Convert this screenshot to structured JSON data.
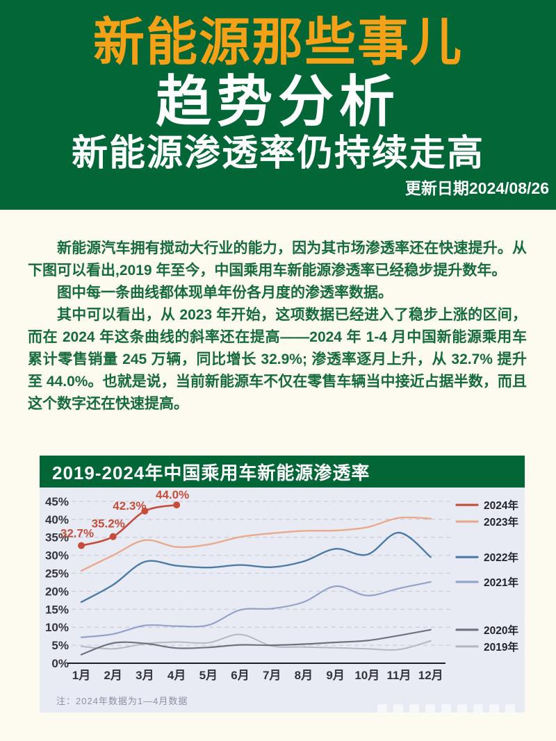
{
  "header": {
    "brand_title": "新能源那些事儿",
    "main_title": "趋势分析",
    "subtitle": "新能源渗透率仍持续走高",
    "update_date": "更新日期2024/08/26"
  },
  "article": {
    "paragraphs": [
      "新能源汽车拥有搅动大行业的能力，因为其市场渗透率还在快速提升。从下图可以看出,2019 年至今，中国乘用车新能源渗透率已经稳步提升数年。",
      "图中每一条曲线都体现单年份各月度的渗透率数据。",
      "其中可以看出，从 2023 年开始，这项数据已经进入了稳步上涨的区间，而在 2024 年这条曲线的斜率还在提高——2024 年 1-4 月中国新能源乘用车累计零售销量 245 万辆，同比增长 32.9%; 渗透率逐月上升，从 32.7% 提升至 44.0%。也就是说，当前新能源车不仅在零售车辆当中接近占据半数，而且这个数字还在快速提高。"
    ]
  },
  "chart": {
    "title": "2019-2024年中国乘用车新能源渗透率",
    "note": "注：2024年数据为1—4月数据"
  },
  "colors": {
    "header_green": "#036636",
    "brand_orange": "#f5a118",
    "body_text_green": "#156b3b",
    "page_cream": "#fdfbf0",
    "chart_bg": "#e9ebf4",
    "grid": "#cbcfd9",
    "axis": "#1c1c22",
    "tick_text": "#33343a",
    "legend_text": "#23242b",
    "note_gray": "#8b91a3"
  },
  "chart_data": {
    "type": "line",
    "title": "2019-2024年中国乘用车新能源渗透率",
    "categories": [
      "1月",
      "2月",
      "3月",
      "4月",
      "5月",
      "6月",
      "7月",
      "8月",
      "9月",
      "10月",
      "11月",
      "12月"
    ],
    "y_ticks": [
      "0%",
      "5%",
      "10%",
      "15%",
      "20%",
      "25%",
      "30%",
      "35%",
      "40%",
      "45%"
    ],
    "ylim": [
      0,
      47
    ],
    "grid": "horizontal-dashed",
    "legend_position": "right-of-plot, aligned to line ends",
    "series": [
      {
        "name": "2019年",
        "color": "#b4b8bf",
        "width": 2,
        "values": [
          4.7,
          4.0,
          5.4,
          5.9,
          5.7,
          8.0,
          4.8,
          4.5,
          4.3,
          4.0,
          3.8,
          6.2
        ]
      },
      {
        "name": "2020年",
        "color": "#6e737d",
        "width": 2.2,
        "values": [
          2.4,
          5.6,
          5.5,
          4.2,
          4.4,
          5.1,
          5.0,
          5.3,
          5.8,
          6.3,
          7.7,
          9.3
        ]
      },
      {
        "name": "2021年",
        "color": "#93a3c8",
        "width": 2.2,
        "values": [
          7.2,
          8.1,
          10.5,
          10.3,
          10.6,
          14.8,
          15.2,
          17.0,
          21.4,
          18.8,
          20.8,
          22.6
        ]
      },
      {
        "name": "2022年",
        "color": "#4a7ba6",
        "width": 2.4,
        "values": [
          17.0,
          21.8,
          28.2,
          27.1,
          26.6,
          27.3,
          26.7,
          28.3,
          31.8,
          30.2,
          36.3,
          29.5
        ]
      },
      {
        "name": "2023年",
        "color": "#e9a98c",
        "width": 2.4,
        "values": [
          25.7,
          30.0,
          34.2,
          32.3,
          33.0,
          35.1,
          36.1,
          36.8,
          36.9,
          37.8,
          40.4,
          40.2
        ]
      },
      {
        "name": "2024年",
        "color": "#c44e3a",
        "width": 2.6,
        "markers": true,
        "values": [
          32.7,
          35.2,
          42.3,
          44.0
        ],
        "point_labels": [
          "32.7%",
          "35.2%",
          "42.3%",
          "44.0%"
        ]
      }
    ],
    "annotation_note": "注：2024年数据为1—4月数据"
  }
}
